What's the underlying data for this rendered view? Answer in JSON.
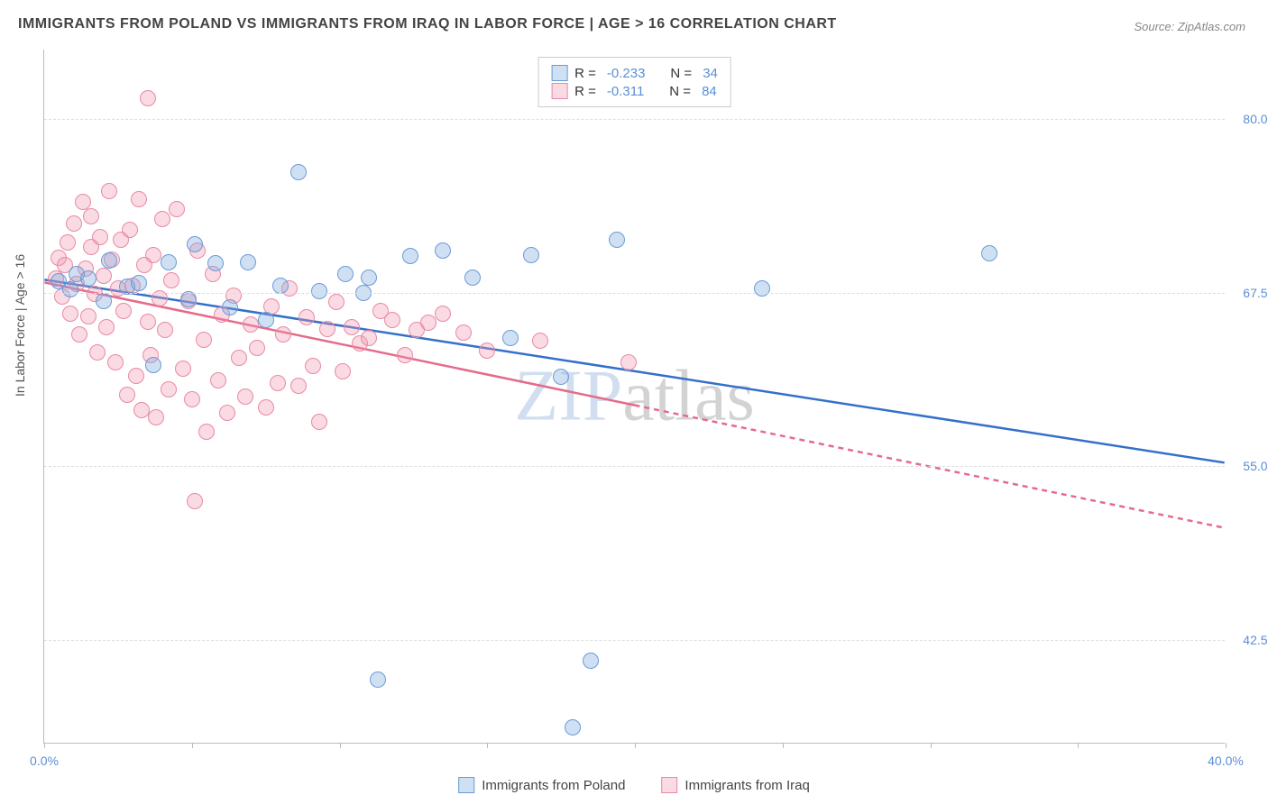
{
  "title": "IMMIGRANTS FROM POLAND VS IMMIGRANTS FROM IRAQ IN LABOR FORCE | AGE > 16 CORRELATION CHART",
  "source_label": "Source: ZipAtlas.com",
  "y_axis_title": "In Labor Force | Age > 16",
  "watermark_a": "ZIP",
  "watermark_b": "atlas",
  "chart": {
    "type": "scatter",
    "xlim": [
      0,
      40
    ],
    "ylim": [
      35,
      85
    ],
    "y_ticks": [
      42.5,
      55.0,
      67.5,
      80.0
    ],
    "y_tick_labels": [
      "42.5%",
      "55.0%",
      "67.5%",
      "80.0%"
    ],
    "x_ticks": [
      0,
      5,
      10,
      15,
      20,
      25,
      30,
      35,
      40
    ],
    "x_tick_labels_shown": {
      "0": "0.0%",
      "40": "40.0%"
    },
    "grid_color": "#dddddd",
    "axis_color": "#bbbbbb",
    "tick_label_color": "#5b8fd6",
    "point_radius": 9,
    "series": {
      "poland": {
        "label": "Immigrants from Poland",
        "fill": "rgba(120,165,220,0.35)",
        "stroke": "#6a9bd8",
        "trend_color": "#3470c9",
        "trend_solid": true,
        "R": "-0.233",
        "N": "34",
        "trend": {
          "x1": 0,
          "y1": 68.4,
          "x2": 40,
          "y2": 55.2
        },
        "points": [
          [
            0.5,
            68.3
          ],
          [
            0.9,
            67.7
          ],
          [
            1.1,
            68.8
          ],
          [
            1.5,
            68.5
          ],
          [
            2.0,
            66.9
          ],
          [
            2.2,
            69.8
          ],
          [
            2.8,
            67.9
          ],
          [
            3.2,
            68.2
          ],
          [
            3.7,
            62.3
          ],
          [
            4.2,
            69.7
          ],
          [
            4.9,
            67.0
          ],
          [
            5.1,
            71.0
          ],
          [
            5.8,
            69.6
          ],
          [
            6.3,
            66.4
          ],
          [
            6.9,
            69.7
          ],
          [
            7.5,
            65.5
          ],
          [
            8.0,
            68.0
          ],
          [
            8.6,
            76.2
          ],
          [
            9.3,
            67.6
          ],
          [
            10.2,
            68.8
          ],
          [
            10.8,
            67.5
          ],
          [
            11.3,
            39.6
          ],
          [
            12.4,
            70.1
          ],
          [
            13.5,
            70.5
          ],
          [
            14.5,
            68.6
          ],
          [
            15.8,
            64.2
          ],
          [
            16.5,
            70.2
          ],
          [
            17.5,
            61.4
          ],
          [
            17.9,
            36.2
          ],
          [
            18.5,
            41.0
          ],
          [
            19.4,
            71.3
          ],
          [
            24.3,
            67.8
          ],
          [
            32.0,
            70.3
          ],
          [
            11.0,
            68.6
          ]
        ]
      },
      "iraq": {
        "label": "Immigrants from Iraq",
        "fill": "rgba(240,150,175,0.35)",
        "stroke": "#e88aa3",
        "trend_color": "#e56b8b",
        "trend_solid_until_x": 20,
        "R": "-0.311",
        "N": "84",
        "trend": {
          "x1": 0,
          "y1": 68.2,
          "x2": 40,
          "y2": 50.5
        },
        "points": [
          [
            0.4,
            68.5
          ],
          [
            0.5,
            70.0
          ],
          [
            0.6,
            67.2
          ],
          [
            0.7,
            69.5
          ],
          [
            0.8,
            71.1
          ],
          [
            0.9,
            66.0
          ],
          [
            1.0,
            72.5
          ],
          [
            1.1,
            68.1
          ],
          [
            1.2,
            64.5
          ],
          [
            1.3,
            74.0
          ],
          [
            1.4,
            69.2
          ],
          [
            1.5,
            65.8
          ],
          [
            1.6,
            70.8
          ],
          [
            1.6,
            73.0
          ],
          [
            1.7,
            67.4
          ],
          [
            1.8,
            63.2
          ],
          [
            1.9,
            71.5
          ],
          [
            2.0,
            68.7
          ],
          [
            2.1,
            65.0
          ],
          [
            2.2,
            74.8
          ],
          [
            2.3,
            69.9
          ],
          [
            2.4,
            62.5
          ],
          [
            2.5,
            67.8
          ],
          [
            2.6,
            71.3
          ],
          [
            2.7,
            66.2
          ],
          [
            2.8,
            60.1
          ],
          [
            2.9,
            72.0
          ],
          [
            3.0,
            68.0
          ],
          [
            3.1,
            61.5
          ],
          [
            3.2,
            74.2
          ],
          [
            3.3,
            59.0
          ],
          [
            3.4,
            69.5
          ],
          [
            3.5,
            65.4
          ],
          [
            3.5,
            81.5
          ],
          [
            3.6,
            63.0
          ],
          [
            3.7,
            70.2
          ],
          [
            3.8,
            58.5
          ],
          [
            3.9,
            67.1
          ],
          [
            4.0,
            72.8
          ],
          [
            4.1,
            64.8
          ],
          [
            4.2,
            60.5
          ],
          [
            4.3,
            68.4
          ],
          [
            4.5,
            73.5
          ],
          [
            4.7,
            62.0
          ],
          [
            4.9,
            66.9
          ],
          [
            5.0,
            59.8
          ],
          [
            5.1,
            52.5
          ],
          [
            5.2,
            70.5
          ],
          [
            5.4,
            64.1
          ],
          [
            5.5,
            57.5
          ],
          [
            5.7,
            68.8
          ],
          [
            5.9,
            61.2
          ],
          [
            6.0,
            65.9
          ],
          [
            6.2,
            58.8
          ],
          [
            6.4,
            67.3
          ],
          [
            6.6,
            62.8
          ],
          [
            6.8,
            60.0
          ],
          [
            7.0,
            65.2
          ],
          [
            7.2,
            63.5
          ],
          [
            7.5,
            59.2
          ],
          [
            7.7,
            66.5
          ],
          [
            7.9,
            61.0
          ],
          [
            8.1,
            64.5
          ],
          [
            8.3,
            67.8
          ],
          [
            8.6,
            60.8
          ],
          [
            8.9,
            65.7
          ],
          [
            9.1,
            62.2
          ],
          [
            9.3,
            58.2
          ],
          [
            9.6,
            64.9
          ],
          [
            9.9,
            66.8
          ],
          [
            10.1,
            61.8
          ],
          [
            10.4,
            65.0
          ],
          [
            10.7,
            63.8
          ],
          [
            11.0,
            64.2
          ],
          [
            11.4,
            66.2
          ],
          [
            11.8,
            65.5
          ],
          [
            12.2,
            63.0
          ],
          [
            12.6,
            64.8
          ],
          [
            13.0,
            65.3
          ],
          [
            13.5,
            66.0
          ],
          [
            14.2,
            64.6
          ],
          [
            15.0,
            63.3
          ],
          [
            16.8,
            64.0
          ],
          [
            19.8,
            62.5
          ]
        ]
      }
    }
  },
  "legend_top": {
    "R_label": "R =",
    "N_label": "N ="
  }
}
